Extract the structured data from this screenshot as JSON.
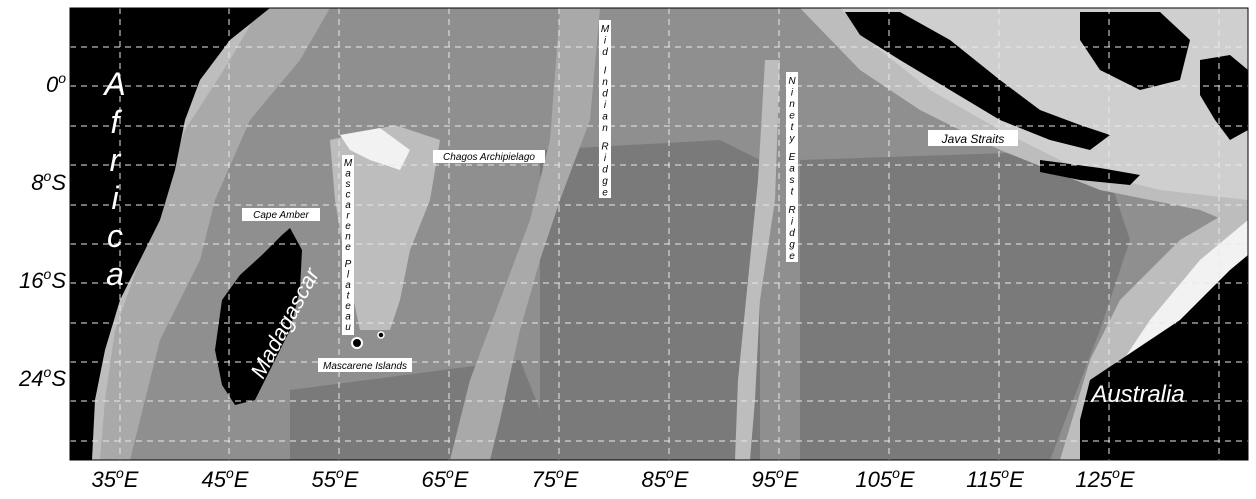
{
  "map": {
    "y_ticks": [
      {
        "deg": "0",
        "hemi": ""
      },
      {
        "deg": "8",
        "hemi": "S"
      },
      {
        "deg": "16",
        "hemi": "S"
      },
      {
        "deg": "24",
        "hemi": "S"
      }
    ],
    "x_ticks": [
      {
        "deg": "35",
        "hemi": "E"
      },
      {
        "deg": "45",
        "hemi": "E"
      },
      {
        "deg": "55",
        "hemi": "E"
      },
      {
        "deg": "65",
        "hemi": "E"
      },
      {
        "deg": "75",
        "hemi": "E"
      },
      {
        "deg": "85",
        "hemi": "E"
      },
      {
        "deg": "95",
        "hemi": "E"
      },
      {
        "deg": "105",
        "hemi": "E"
      },
      {
        "deg": "115",
        "hemi": "E"
      },
      {
        "deg": "125",
        "hemi": "E"
      }
    ],
    "labels": {
      "africa": "Africa",
      "madagascar": "Madagascar",
      "australia": "Australia",
      "cape_amber": "Cape Amber",
      "chagos": "Chagos Archipielago",
      "mascarene_islands": "Mascarene Islands",
      "java_straits": "Java Straits",
      "mascarene_plateau": "Mascarene Plateau",
      "mid_indian_ridge": "Mid Indian Ridge",
      "ninety_east_ridge": "Ninety East Ridge"
    },
    "colors": {
      "land": "#000000",
      "shelf": "#f2f2f2",
      "shallow": "#cfcfcf",
      "mid": "#a9a9a9",
      "deep": "#8f8f8f",
      "abyss": "#7a7a7a",
      "grid": "#e8e8e8"
    }
  }
}
